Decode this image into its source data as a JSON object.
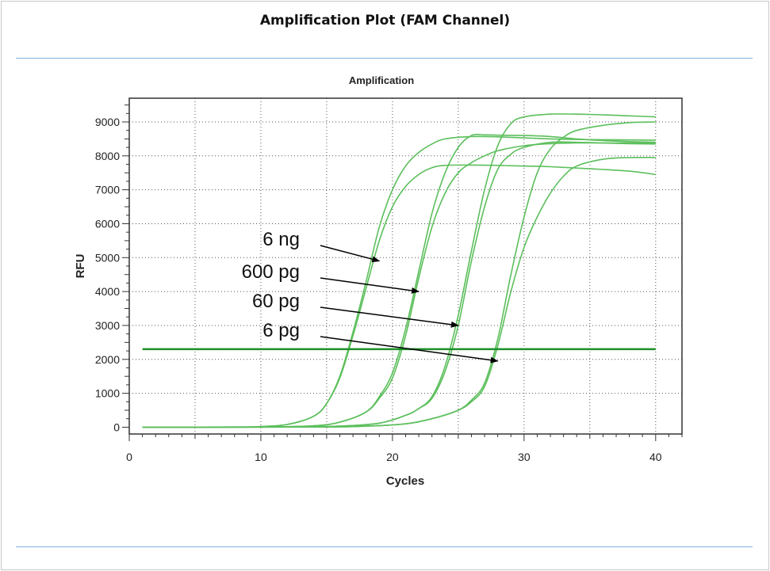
{
  "page": {
    "title": "Amplification Plot (FAM Channel)"
  },
  "colors": {
    "curve": "#5cbf5c",
    "threshold": "#1f8f2a",
    "grid": "#555555",
    "rule": "#7fb2e6"
  },
  "chart_data": {
    "type": "line",
    "title": "Amplification",
    "xlabel": "Cycles",
    "ylabel": "RFU",
    "xlim": [
      0,
      42
    ],
    "ylim": [
      -200,
      9700
    ],
    "x_ticks": [
      "0",
      "10",
      "20",
      "30",
      "40"
    ],
    "y_ticks": [
      "0",
      "1000",
      "2000",
      "3000",
      "4000",
      "5000",
      "6000",
      "7000",
      "8000",
      "9000"
    ],
    "grid": true,
    "threshold": {
      "value": 2300,
      "x_start": 1,
      "x_end": 40
    },
    "series": [
      {
        "values": [
          [
            1,
            0
          ],
          [
            8,
            5
          ],
          [
            10,
            20
          ],
          [
            12,
            80
          ],
          [
            14,
            320
          ],
          [
            15,
            700
          ],
          [
            16,
            1500
          ],
          [
            17,
            2800
          ],
          [
            18,
            4300
          ],
          [
            19,
            5900
          ],
          [
            20,
            7000
          ],
          [
            21,
            7700
          ],
          [
            22,
            8100
          ],
          [
            23,
            8350
          ],
          [
            24,
            8500
          ],
          [
            26,
            8570
          ],
          [
            28,
            8560
          ],
          [
            30,
            8530
          ],
          [
            32,
            8500
          ],
          [
            35,
            8480
          ],
          [
            38,
            8470
          ],
          [
            40,
            8460
          ]
        ]
      },
      {
        "values": [
          [
            1,
            0
          ],
          [
            8,
            5
          ],
          [
            10,
            20
          ],
          [
            12,
            80
          ],
          [
            14,
            320
          ],
          [
            15,
            700
          ],
          [
            16,
            1450
          ],
          [
            17,
            2700
          ],
          [
            18,
            4100
          ],
          [
            19,
            5500
          ],
          [
            20,
            6500
          ],
          [
            21,
            7100
          ],
          [
            22,
            7450
          ],
          [
            23,
            7650
          ],
          [
            24,
            7720
          ],
          [
            26,
            7730
          ],
          [
            28,
            7720
          ],
          [
            30,
            7700
          ],
          [
            32,
            7680
          ],
          [
            35,
            7620
          ],
          [
            38,
            7550
          ],
          [
            40,
            7450
          ]
        ]
      },
      {
        "values": [
          [
            1,
            0
          ],
          [
            10,
            5
          ],
          [
            14,
            40
          ],
          [
            16,
            150
          ],
          [
            18,
            450
          ],
          [
            19,
            900
          ],
          [
            20,
            1600
          ],
          [
            21,
            2900
          ],
          [
            22,
            4600
          ],
          [
            23,
            6300
          ],
          [
            24,
            7500
          ],
          [
            25,
            8250
          ],
          [
            26,
            8600
          ],
          [
            27,
            8620
          ],
          [
            28,
            8610
          ],
          [
            30,
            8600
          ],
          [
            32,
            8570
          ],
          [
            34,
            8500
          ],
          [
            36,
            8450
          ],
          [
            38,
            8420
          ],
          [
            40,
            8400
          ]
        ]
      },
      {
        "values": [
          [
            1,
            0
          ],
          [
            10,
            5
          ],
          [
            14,
            40
          ],
          [
            16,
            150
          ],
          [
            18,
            450
          ],
          [
            19,
            850
          ],
          [
            20,
            1450
          ],
          [
            21,
            2700
          ],
          [
            22,
            4400
          ],
          [
            23,
            5900
          ],
          [
            24,
            6900
          ],
          [
            25,
            7500
          ],
          [
            26,
            7800
          ],
          [
            27,
            8000
          ],
          [
            28,
            8150
          ],
          [
            30,
            8300
          ],
          [
            32,
            8360
          ],
          [
            34,
            8380
          ],
          [
            36,
            8380
          ],
          [
            38,
            8380
          ],
          [
            40,
            8380
          ]
        ]
      },
      {
        "values": [
          [
            1,
            0
          ],
          [
            12,
            5
          ],
          [
            16,
            30
          ],
          [
            19,
            120
          ],
          [
            21,
            350
          ],
          [
            22,
            550
          ],
          [
            23,
            900
          ],
          [
            24,
            1800
          ],
          [
            25,
            3300
          ],
          [
            26,
            5200
          ],
          [
            27,
            7000
          ],
          [
            28,
            8300
          ],
          [
            29,
            8950
          ],
          [
            30,
            9150
          ],
          [
            32,
            9230
          ],
          [
            34,
            9230
          ],
          [
            36,
            9210
          ],
          [
            38,
            9180
          ],
          [
            40,
            9150
          ]
        ]
      },
      {
        "values": [
          [
            1,
            0
          ],
          [
            12,
            5
          ],
          [
            16,
            30
          ],
          [
            19,
            120
          ],
          [
            21,
            350
          ],
          [
            22,
            550
          ],
          [
            23,
            850
          ],
          [
            24,
            1650
          ],
          [
            25,
            3000
          ],
          [
            26,
            4900
          ],
          [
            27,
            6500
          ],
          [
            28,
            7600
          ],
          [
            29,
            8050
          ],
          [
            30,
            8250
          ],
          [
            32,
            8400
          ],
          [
            34,
            8400
          ],
          [
            36,
            8380
          ],
          [
            38,
            8360
          ],
          [
            40,
            8350
          ]
        ]
      },
      {
        "values": [
          [
            1,
            0
          ],
          [
            14,
            5
          ],
          [
            18,
            30
          ],
          [
            21,
            100
          ],
          [
            23,
            250
          ],
          [
            25,
            500
          ],
          [
            26,
            800
          ],
          [
            27,
            1300
          ],
          [
            28,
            2600
          ],
          [
            29,
            4500
          ],
          [
            30,
            6200
          ],
          [
            31,
            7500
          ],
          [
            32,
            8200
          ],
          [
            33,
            8550
          ],
          [
            34,
            8750
          ],
          [
            36,
            8900
          ],
          [
            38,
            8980
          ],
          [
            40,
            9000
          ]
        ]
      },
      {
        "values": [
          [
            1,
            0
          ],
          [
            14,
            5
          ],
          [
            18,
            30
          ],
          [
            21,
            100
          ],
          [
            23,
            250
          ],
          [
            25,
            500
          ],
          [
            26,
            750
          ],
          [
            27,
            1200
          ],
          [
            28,
            2400
          ],
          [
            29,
            4000
          ],
          [
            30,
            5300
          ],
          [
            31,
            6200
          ],
          [
            32,
            6900
          ],
          [
            33,
            7400
          ],
          [
            34,
            7700
          ],
          [
            36,
            7900
          ],
          [
            38,
            7950
          ],
          [
            40,
            7950
          ]
        ]
      }
    ],
    "annotations": [
      {
        "text": "6 ng",
        "arrow_to": [
          19,
          4900
        ]
      },
      {
        "text": "600 pg",
        "arrow_to": [
          22,
          4000
        ]
      },
      {
        "text": "60 pg",
        "arrow_to": [
          25,
          3000
        ]
      },
      {
        "text": "6 pg",
        "arrow_to": [
          28,
          1950
        ]
      }
    ]
  }
}
